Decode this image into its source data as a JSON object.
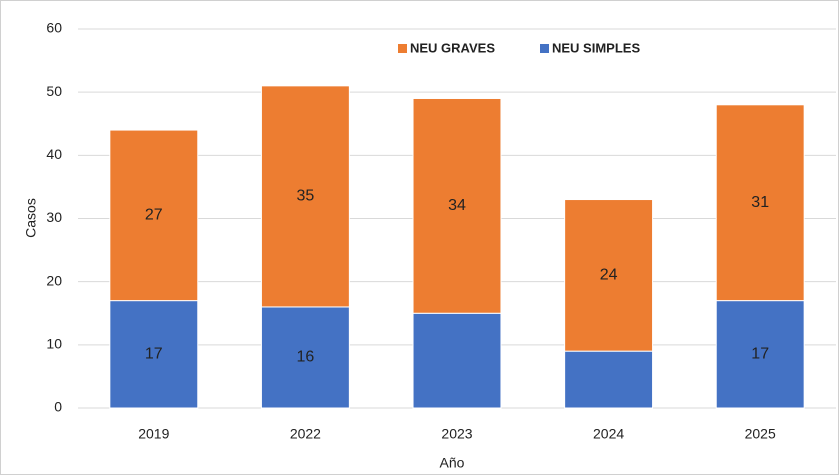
{
  "chart_data": {
    "type": "stacked_bar",
    "categories": [
      "2019",
      "2022",
      "2023",
      "2024",
      "2025"
    ],
    "series": [
      {
        "name": "NEU SIMPLES",
        "color": "#4472c4",
        "values": [
          17,
          16,
          15,
          9,
          17
        ],
        "value_labels": [
          "17",
          "16",
          null,
          null,
          "17"
        ]
      },
      {
        "name": "NEU GRAVES",
        "color": "#ed7d31",
        "values": [
          27,
          35,
          34,
          24,
          31
        ],
        "value_labels": [
          "27",
          "35",
          "34",
          "24",
          "31"
        ]
      }
    ],
    "ylim": [
      0,
      60
    ],
    "yticks": [
      0,
      10,
      20,
      30,
      40,
      50,
      60
    ],
    "grid": true,
    "xlabel": "Año",
    "ylabel": "Casos",
    "legend": "top"
  }
}
